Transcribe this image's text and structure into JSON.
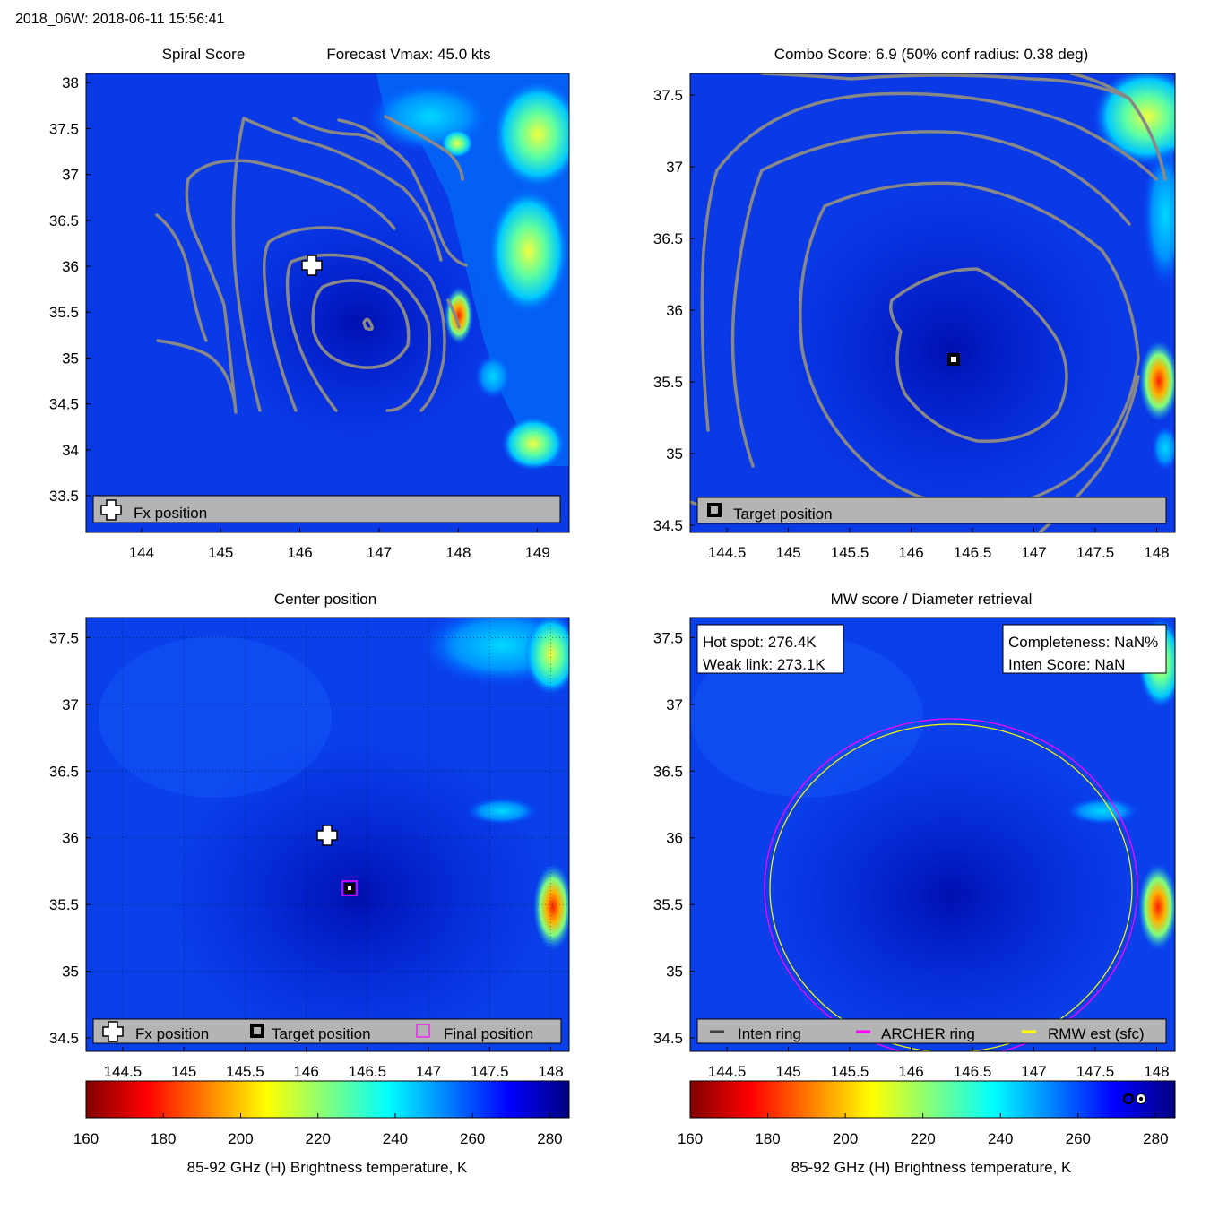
{
  "header": {
    "storm_time": "2018_06W: 2018-06-11 15:56:41"
  },
  "colors": {
    "legend_bar": "#b4b4b4",
    "contour": "#888888",
    "archer_ring": "#ff00ff",
    "rmw_ring": "#ffff00",
    "inten_ring": "#404040"
  },
  "chart_data": [
    {
      "id": "spiral",
      "type": "heatmap",
      "title_left": "Spiral Score",
      "title_right": "Forecast Vmax: 45.0 kts",
      "xlim": [
        143.3,
        149.4
      ],
      "ylim": [
        33.1,
        38.1
      ],
      "x_ticks": [
        "144",
        "145",
        "146",
        "147",
        "148",
        "149"
      ],
      "x_tick_values": [
        144,
        145,
        146,
        147,
        148,
        149
      ],
      "y_ticks": [
        "33.5",
        "34",
        "34.5",
        "35",
        "35.5",
        "36",
        "36.5",
        "37",
        "37.5",
        "38"
      ],
      "y_tick_values": [
        33.5,
        34,
        34.5,
        35,
        35.5,
        36,
        36.5,
        37,
        37.5,
        38
      ],
      "markers": [
        {
          "label": "Fx position",
          "symbol": "plus",
          "lon": 146.15,
          "lat": 36.0
        }
      ],
      "legend": [
        "Fx position"
      ]
    },
    {
      "id": "combo",
      "type": "heatmap",
      "title": "Combo Score: 6.9  (50% conf radius: 0.38 deg)",
      "xlim": [
        144.2,
        148.15
      ],
      "ylim": [
        34.45,
        37.65
      ],
      "x_ticks": [
        "144.5",
        "145",
        "145.5",
        "146",
        "146.5",
        "147",
        "147.5",
        "148"
      ],
      "x_tick_values": [
        144.5,
        145,
        145.5,
        146,
        146.5,
        147,
        147.5,
        148
      ],
      "y_ticks": [
        "34.5",
        "35",
        "35.5",
        "36",
        "36.5",
        "37",
        "37.5"
      ],
      "y_tick_values": [
        34.5,
        35,
        35.5,
        36,
        36.5,
        37,
        37.5
      ],
      "markers": [
        {
          "label": "Target position",
          "symbol": "square",
          "lon": 146.35,
          "lat": 35.6
        }
      ],
      "legend": [
        "Target position"
      ]
    },
    {
      "id": "center",
      "type": "heatmap",
      "title": "Center position",
      "xlim": [
        144.2,
        148.15
      ],
      "ylim": [
        34.4,
        37.65
      ],
      "x_ticks": [
        "144.5",
        "145",
        "145.5",
        "146",
        "146.5",
        "147",
        "147.5",
        "148"
      ],
      "x_tick_values": [
        144.5,
        145,
        145.5,
        146,
        146.5,
        147,
        147.5,
        148
      ],
      "y_ticks": [
        "34.5",
        "35",
        "35.5",
        "36",
        "36.5",
        "37",
        "37.5"
      ],
      "y_tick_values": [
        34.5,
        35,
        35.5,
        36,
        36.5,
        37,
        37.5
      ],
      "markers": [
        {
          "label": "Fx position",
          "symbol": "plus",
          "lon": 146.15,
          "lat": 36.0
        },
        {
          "label": "Target position",
          "symbol": "square",
          "lon": 146.35,
          "lat": 35.6
        },
        {
          "label": "Final position",
          "symbol": "magenta-square",
          "lon": 146.35,
          "lat": 35.6
        }
      ],
      "legend": [
        "Fx position",
        "Target position",
        "Final position"
      ]
    },
    {
      "id": "mw",
      "type": "heatmap",
      "title": "MW score / Diameter retrieval",
      "xlim": [
        144.2,
        148.15
      ],
      "ylim": [
        34.4,
        37.65
      ],
      "x_ticks": [
        "144.5",
        "145",
        "145.5",
        "146",
        "146.5",
        "147",
        "147.5",
        "148"
      ],
      "x_tick_values": [
        144.5,
        145,
        145.5,
        146,
        146.5,
        147,
        147.5,
        148
      ],
      "y_ticks": [
        "34.5",
        "35",
        "35.5",
        "36",
        "36.5",
        "37",
        "37.5"
      ],
      "y_tick_values": [
        34.5,
        35,
        35.5,
        36,
        36.5,
        37,
        37.5
      ],
      "info_left": [
        "Hot spot: 276.4K",
        "Weak link: 273.1K"
      ],
      "info_right": [
        "Completeness: NaN%",
        "Inten Score: NaN"
      ],
      "rings": {
        "center_lon": 146.3,
        "center_lat": 35.6,
        "archer_radius_deg": 1.5,
        "rmw_radius_deg": 1.48
      },
      "legend": [
        "Inten ring",
        "ARCHER ring",
        "RMW est (sfc)"
      ]
    }
  ],
  "colorbar": {
    "range": [
      160,
      285
    ],
    "ticks": [
      "160",
      "180",
      "200",
      "220",
      "240",
      "260",
      "280"
    ],
    "tick_values": [
      160,
      180,
      200,
      220,
      240,
      260,
      280
    ],
    "label": "85-92 GHz (H) Brightness temperature, K"
  }
}
